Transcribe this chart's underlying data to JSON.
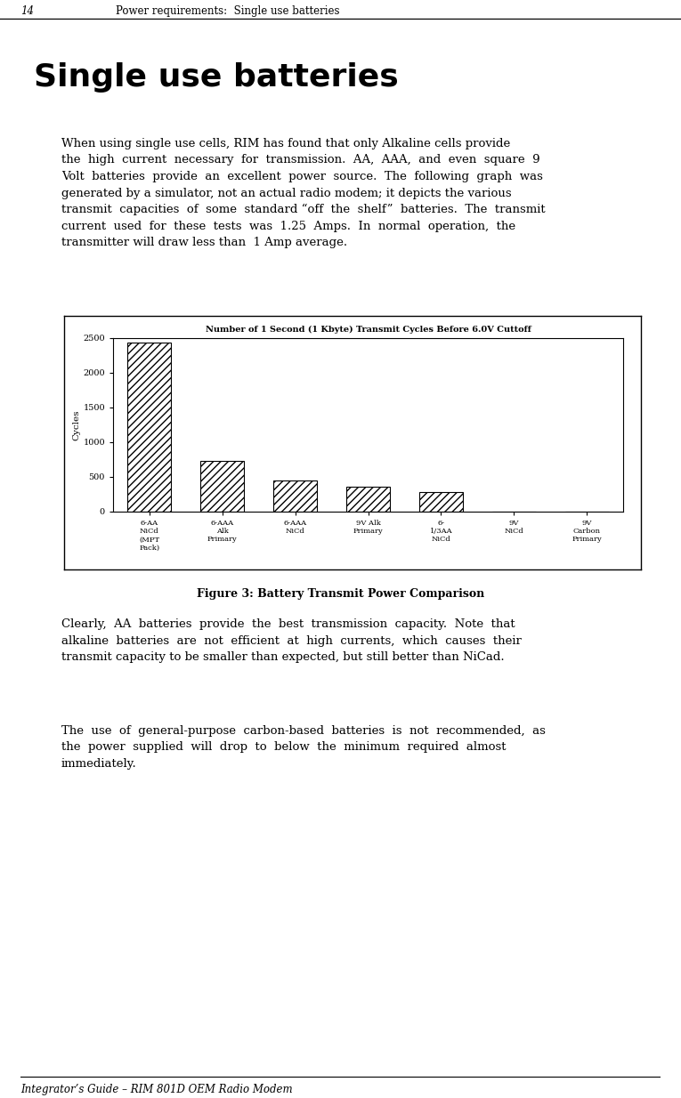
{
  "title": "Number of 1 Second (1 Kbyte) Transmit Cycles Before 6.0V Cuttoff",
  "ylabel": "Cycles",
  "categories": [
    "6-AA\nNiCd\n(MPT\nPack)",
    "6-AAA\nAlk\nPrimary",
    "6-AAA\nNiCd",
    "9V Alk\nPrimary",
    "6-\n1/3AA\nNiCd",
    "9V\nNiCd",
    "9V\nCarbon\nPrimary"
  ],
  "values": [
    2430,
    730,
    450,
    360,
    280,
    5,
    5
  ],
  "ylim": [
    0,
    2500
  ],
  "yticks": [
    0,
    500,
    1000,
    1500,
    2000,
    2500
  ],
  "bar_color": "#ffffff",
  "bar_edgecolor": "#000000",
  "hatch": "////",
  "page_width": 7.65,
  "page_height": 12.34,
  "page_bg": "#ffffff",
  "header_text_num": "14",
  "header_text_title": "Power requirements:  Single use batteries",
  "section_title": "Single use batteries",
  "body1": "When using single use cells, RIM has found that only Alkaline cells provide\nthe  high  current  necessary  for  transmission.  AA,  AAA,  and  even  square  9\nVolt  batteries  provide  an  excellent  power  source.  The  following  graph  was\ngenerated by a simulator, not an actual radio modem; it depicts the various\ntransmit  capacities  of  some  standard “off  the  shelf”  batteries.  The  transmit\ncurrent  used  for  these  tests  was  1.25  Amps.  In  normal  operation,  the\ntransmitter will draw less than  1 Amp average.",
  "caption": "Figure 3: Battery Transmit Power Comparison",
  "body2": "Clearly,  AA  batteries  provide  the  best  transmission  capacity.  Note  that\nalkaline  batteries  are  not  efficient  at  high  currents,  which  causes  their\ntransmit capacity to be smaller than expected, but still better than NiCad.",
  "body3": "The  use  of  general-purpose  carbon-based  batteries  is  not  recommended,  as\nthe  power  supplied  will  drop  to  below  the  minimum  required  almost\nimmediately.",
  "footer_text": "Integrator’s Guide – RIM 801D OEM Radio Modem"
}
